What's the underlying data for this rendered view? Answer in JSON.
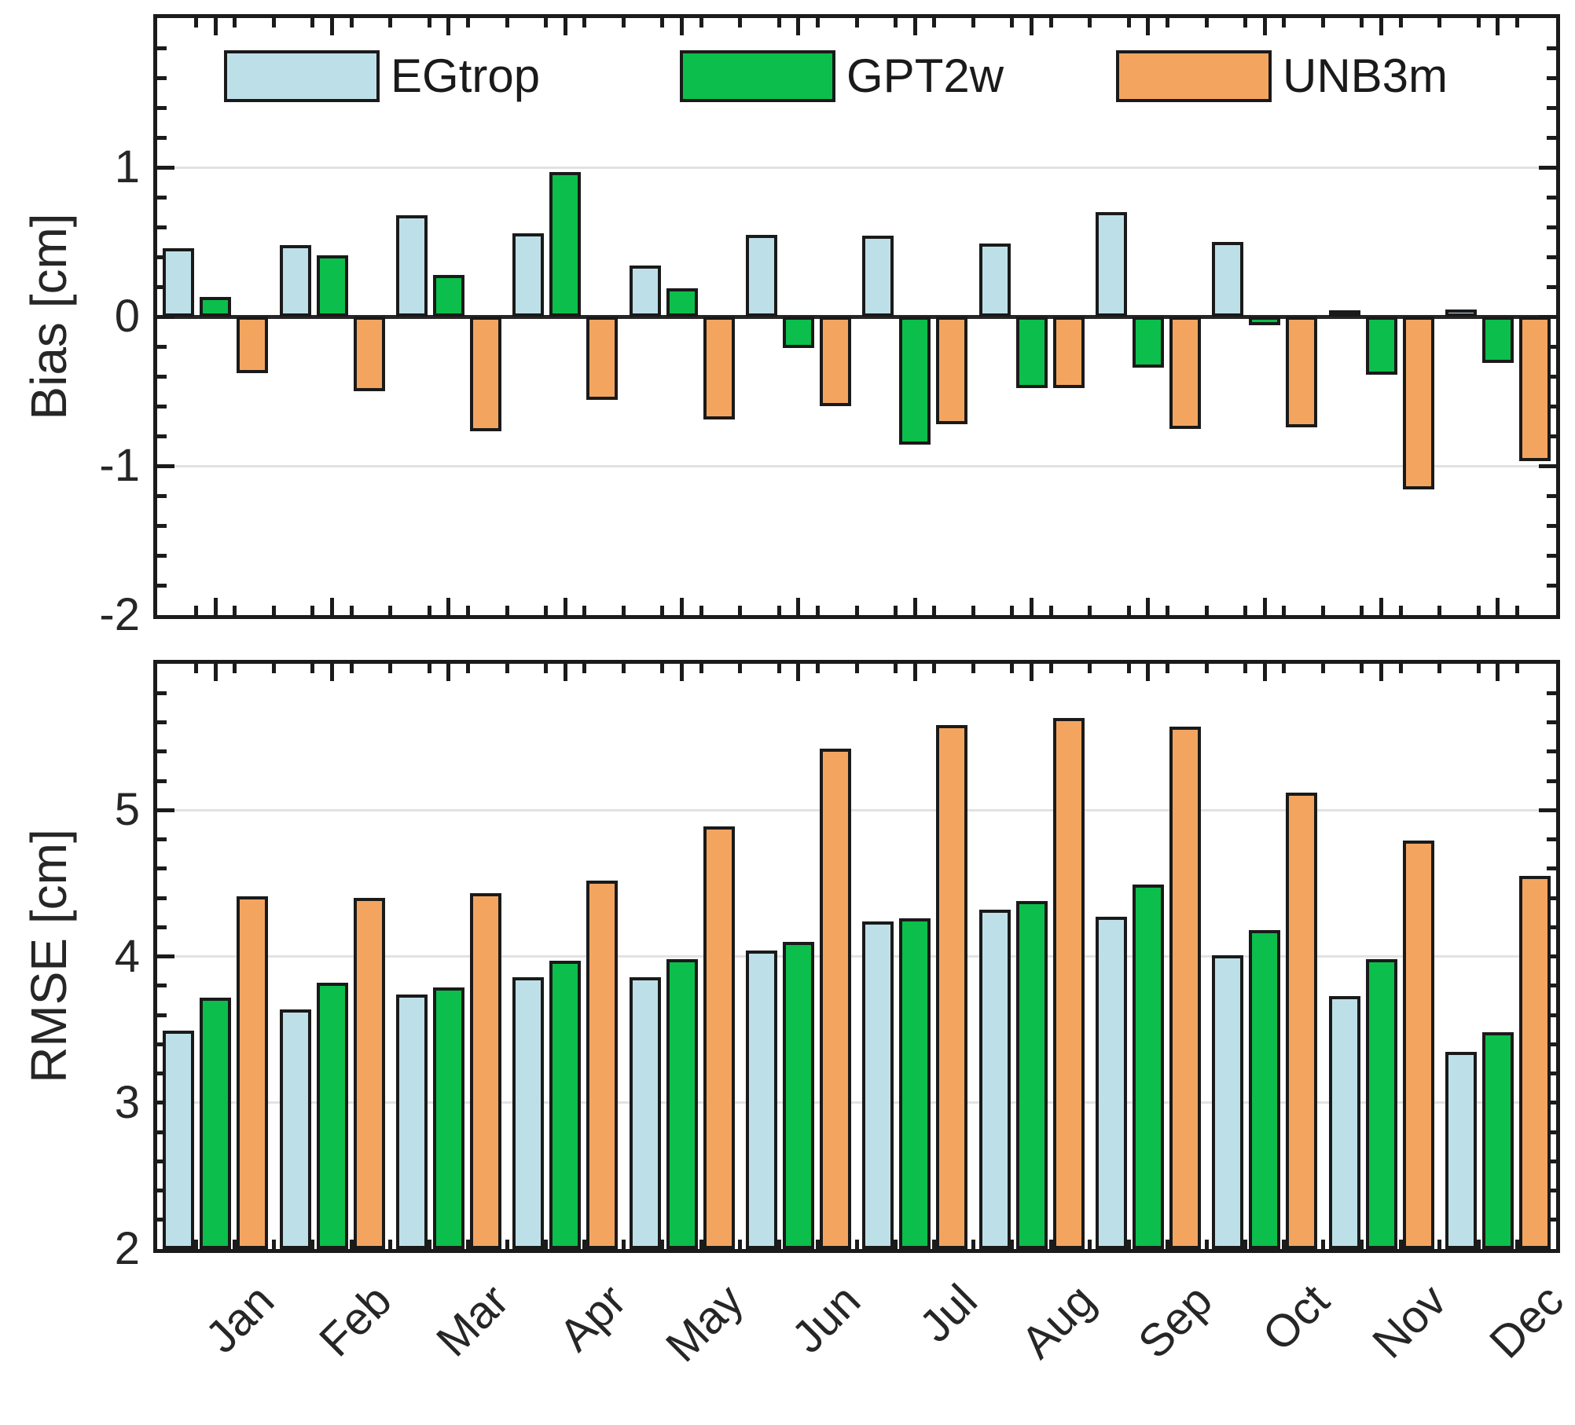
{
  "legend": {
    "entries": [
      {
        "label": "EGtrop",
        "color": "#BDE0E8"
      },
      {
        "label": "GPT2w",
        "color": "#0CBE4B"
      },
      {
        "label": "UNB3m",
        "color": "#F3A560"
      }
    ]
  },
  "colors": {
    "bar_border": "#1A1A1A",
    "axis": "#1B1B1B",
    "gridline": "#E2E2E2",
    "tick_text": "#262626"
  },
  "chart_data": [
    {
      "type": "bar",
      "title": "",
      "xlabel": "",
      "ylabel": "Bias [cm]",
      "categories": [
        "Jan",
        "Feb",
        "Mar",
        "Apr",
        "May",
        "Jun",
        "Jul",
        "Aug",
        "Sep",
        "Oct",
        "Nov",
        "Dec"
      ],
      "ylim": [
        -2,
        2
      ],
      "yticks": [
        1,
        0,
        -1,
        -2
      ],
      "ytick_labels": [
        "1",
        "0",
        "-1",
        "-2"
      ],
      "gridlines": [
        1,
        -1
      ],
      "baseline": 0,
      "grid": "on",
      "legend_position": "top-inside",
      "show_x_labels": false,
      "series": [
        {
          "name": "EGtrop",
          "color": "#BDE0E8",
          "values": [
            0.46,
            0.48,
            0.68,
            0.56,
            0.34,
            0.55,
            0.54,
            0.49,
            0.7,
            0.5,
            0.04,
            0.05
          ]
        },
        {
          "name": "GPT2w",
          "color": "#0CBE4B",
          "values": [
            0.13,
            0.41,
            0.28,
            0.97,
            0.19,
            -0.21,
            -0.86,
            -0.48,
            -0.34,
            -0.06,
            -0.39,
            -0.31
          ]
        },
        {
          "name": "UNB3m",
          "color": "#F3A560",
          "values": [
            -0.38,
            -0.5,
            -0.77,
            -0.56,
            -0.69,
            -0.6,
            -0.72,
            -0.48,
            -0.75,
            -0.74,
            -1.16,
            -0.97
          ]
        }
      ]
    },
    {
      "type": "bar",
      "title": "",
      "xlabel": "",
      "ylabel": "RMSE [cm]",
      "categories": [
        "Jan",
        "Feb",
        "Mar",
        "Apr",
        "May",
        "Jun",
        "Jul",
        "Aug",
        "Sep",
        "Oct",
        "Nov",
        "Dec"
      ],
      "ylim": [
        2,
        6
      ],
      "yticks": [
        5,
        4,
        3,
        2
      ],
      "ytick_labels": [
        "5",
        "4",
        "3",
        "2"
      ],
      "gridlines": [
        3,
        4,
        5
      ],
      "baseline": 2,
      "grid": "on",
      "show_x_labels": true,
      "series": [
        {
          "name": "EGtrop",
          "color": "#BDE0E8",
          "values": [
            3.49,
            3.64,
            3.74,
            3.86,
            3.86,
            4.04,
            4.24,
            4.32,
            4.27,
            4.01,
            3.73,
            3.35
          ]
        },
        {
          "name": "GPT2w",
          "color": "#0CBE4B",
          "values": [
            3.72,
            3.82,
            3.79,
            3.97,
            3.98,
            4.1,
            4.26,
            4.38,
            4.49,
            4.18,
            3.98,
            3.48
          ]
        },
        {
          "name": "UNB3m",
          "color": "#F3A560",
          "values": [
            4.41,
            4.4,
            4.43,
            4.52,
            4.89,
            5.42,
            5.58,
            5.63,
            5.57,
            5.12,
            4.79,
            4.55
          ]
        }
      ]
    }
  ]
}
